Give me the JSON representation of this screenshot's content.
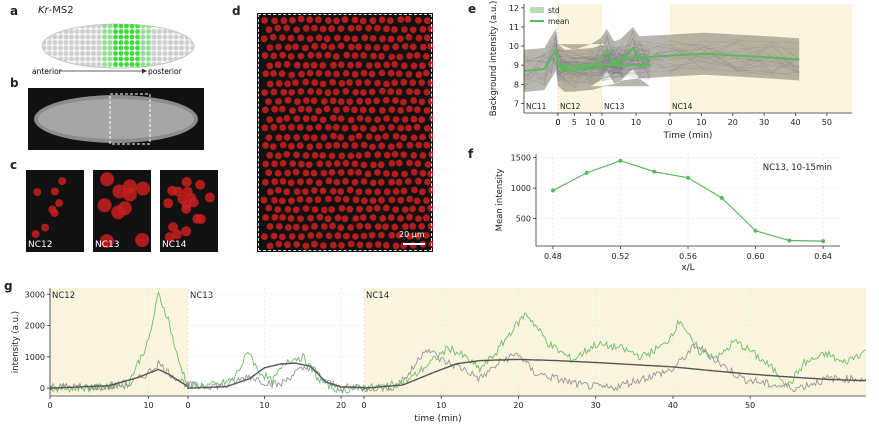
{
  "panels": {
    "a": {
      "letter": "a",
      "title_gene": "Kr",
      "title_rest": "-MS2",
      "axis_left": "anterior",
      "axis_right": "posterior"
    },
    "b": {
      "letter": "b"
    },
    "c": {
      "letter": "c",
      "tiles": [
        "NC12",
        "NC13",
        "NC14"
      ]
    },
    "d": {
      "letter": "d",
      "scalebar": "20 µm"
    },
    "e": {
      "letter": "e"
    },
    "f": {
      "letter": "f"
    },
    "g": {
      "letter": "g"
    }
  },
  "colors": {
    "green": "#5cb85c",
    "gray": "#8c8c8c",
    "dark": "#555555",
    "nc_bg": "#fbf5e0",
    "red": "#c81e1e"
  },
  "chart_data": [
    {
      "id": "e",
      "type": "line",
      "ylabel": "Background intensity (a.u.)",
      "xlabel": "Time (min)",
      "ylim": [
        6.5,
        12.2
      ],
      "yticks": [
        7,
        8,
        9,
        10,
        11,
        12
      ],
      "legend": [
        "std",
        "mean"
      ],
      "legend_position": "top-left",
      "cycles": [
        {
          "name": "NC11",
          "start": -5,
          "end": 0,
          "ticks": [
            0
          ],
          "shaded": false
        },
        {
          "name": "NC12",
          "start": 0,
          "end": 13.5,
          "ticks": [
            0,
            5,
            10
          ],
          "shaded": true
        },
        {
          "name": "NC13",
          "start": 0,
          "end": 20,
          "ticks": [
            0,
            10
          ],
          "shaded": false
        },
        {
          "name": "NC14",
          "start": 0,
          "end": 58,
          "ticks": [
            0,
            10,
            20,
            30,
            40,
            50
          ],
          "shaded": true
        }
      ],
      "mean": [
        [
          -5,
          8.7
        ],
        [
          -2,
          8.8
        ],
        [
          -1,
          9.4
        ],
        [
          -0.3,
          9.8
        ],
        [
          0,
          9.0
        ],
        [
          1,
          8.7
        ],
        [
          5,
          8.8
        ],
        [
          9,
          9.2
        ],
        [
          11,
          9.9
        ],
        [
          12,
          9.4
        ],
        [
          13.5,
          9.0
        ],
        [
          0,
          9.0
        ],
        [
          5,
          8.7
        ],
        [
          10,
          9.0
        ],
        [
          13,
          9.3
        ],
        [
          15,
          9.8
        ],
        [
          17,
          9.2
        ],
        [
          20,
          9.0
        ],
        [
          0,
          9.0
        ],
        [
          3,
          9.1
        ],
        [
          6,
          9.3
        ],
        [
          10,
          9.4
        ],
        [
          20,
          9.5
        ],
        [
          30,
          9.6
        ],
        [
          40,
          9.5
        ],
        [
          50,
          9.4
        ],
        [
          58,
          9.3
        ]
      ]
    },
    {
      "id": "f",
      "type": "line",
      "title": "NC13, 10-15min",
      "xlabel": "x/L",
      "ylabel": "Mean intensity",
      "xlim": [
        0.47,
        0.65
      ],
      "ylim": [
        50,
        1560
      ],
      "xticks": [
        0.48,
        0.52,
        0.56,
        0.6,
        0.64
      ],
      "yticks": [
        500,
        1000,
        1500
      ],
      "x": [
        0.48,
        0.5,
        0.52,
        0.54,
        0.56,
        0.58,
        0.6,
        0.62,
        0.64
      ],
      "y": [
        960,
        1250,
        1450,
        1270,
        1170,
        840,
        300,
        140,
        130
      ]
    },
    {
      "id": "g",
      "type": "line",
      "ylabel": "intensity (a.u.)",
      "xlabel": "time (min)",
      "ylim": [
        -250,
        3200
      ],
      "yticks": [
        0,
        1000,
        2000,
        3000
      ],
      "cycles": [
        {
          "name": "NC12",
          "start": 0,
          "end": 14,
          "ticks": [
            0,
            10
          ],
          "shaded": true
        },
        {
          "name": "NC13",
          "start": 0,
          "end": 23,
          "ticks": [
            0,
            10,
            20
          ],
          "shaded": false
        },
        {
          "name": "NC14",
          "start": 0,
          "end": 65,
          "ticks": [
            0,
            10,
            20,
            30,
            40,
            50
          ],
          "shaded": true
        }
      ],
      "series": [
        {
          "name": "",
          "color": "green",
          "points": [
            [
              0,
              0
            ],
            [
              5,
              20
            ],
            [
              8,
              200
            ],
            [
              10,
              1500
            ],
            [
              11,
              3000
            ],
            [
              12,
              2200
            ],
            [
              13,
              900
            ],
            [
              14,
              100
            ],
            [
              0,
              80
            ],
            [
              4,
              100
            ],
            [
              6,
              300
            ],
            [
              8,
              1200
            ],
            [
              9,
              600
            ],
            [
              11,
              200
            ],
            [
              13,
              900
            ],
            [
              15,
              1000
            ],
            [
              17,
              300
            ],
            [
              19,
              0
            ],
            [
              21,
              -50
            ],
            [
              23,
              50
            ],
            [
              0,
              0
            ],
            [
              3,
              50
            ],
            [
              6,
              300
            ],
            [
              9,
              900
            ],
            [
              11,
              1300
            ],
            [
              13,
              1000
            ],
            [
              15,
              600
            ],
            [
              17,
              1100
            ],
            [
              19,
              1800
            ],
            [
              21,
              2400
            ],
            [
              24,
              1400
            ],
            [
              27,
              900
            ],
            [
              30,
              1400
            ],
            [
              33,
              1300
            ],
            [
              36,
              1000
            ],
            [
              39,
              1400
            ],
            [
              41,
              2200
            ],
            [
              43,
              1200
            ],
            [
              46,
              1000
            ],
            [
              48,
              1500
            ],
            [
              50,
              1200
            ],
            [
              53,
              600
            ],
            [
              55,
              100
            ],
            [
              57,
              800
            ],
            [
              60,
              1100
            ],
            [
              62,
              800
            ],
            [
              65,
              1200
            ]
          ]
        },
        {
          "name": "",
          "color": "gray",
          "points": [
            [
              0,
              50
            ],
            [
              5,
              30
            ],
            [
              8,
              100
            ],
            [
              10,
              500
            ],
            [
              11,
              800
            ],
            [
              12,
              500
            ],
            [
              14,
              100
            ],
            [
              0,
              80
            ],
            [
              5,
              80
            ],
            [
              8,
              400
            ],
            [
              10,
              200
            ],
            [
              12,
              100
            ],
            [
              14,
              500
            ],
            [
              16,
              700
            ],
            [
              18,
              200
            ],
            [
              20,
              0
            ],
            [
              23,
              30
            ],
            [
              0,
              0
            ],
            [
              4,
              50
            ],
            [
              6,
              500
            ],
            [
              8,
              1300
            ],
            [
              10,
              900
            ],
            [
              13,
              600
            ],
            [
              15,
              300
            ],
            [
              18,
              900
            ],
            [
              20,
              1100
            ],
            [
              22,
              500
            ],
            [
              25,
              300
            ],
            [
              28,
              100
            ],
            [
              32,
              0
            ],
            [
              36,
              300
            ],
            [
              40,
              600
            ],
            [
              43,
              1400
            ],
            [
              46,
              800
            ],
            [
              49,
              300
            ],
            [
              53,
              100
            ],
            [
              56,
              0
            ],
            [
              60,
              300
            ],
            [
              65,
              300
            ]
          ]
        },
        {
          "name": "",
          "color": "dark",
          "points": [
            [
              0,
              0
            ],
            [
              6,
              80
            ],
            [
              9,
              350
            ],
            [
              11,
              600
            ],
            [
              12,
              450
            ],
            [
              14,
              50
            ],
            [
              0,
              0
            ],
            [
              5,
              50
            ],
            [
              8,
              300
            ],
            [
              10,
              650
            ],
            [
              12,
              770
            ],
            [
              14,
              800
            ],
            [
              16,
              700
            ],
            [
              18,
              200
            ],
            [
              20,
              40
            ],
            [
              23,
              20
            ],
            [
              0,
              0
            ],
            [
              5,
              100
            ],
            [
              9,
              500
            ],
            [
              12,
              780
            ],
            [
              15,
              880
            ],
            [
              20,
              920
            ],
            [
              25,
              880
            ],
            [
              30,
              820
            ],
            [
              35,
              750
            ],
            [
              40,
              680
            ],
            [
              45,
              560
            ],
            [
              50,
              450
            ],
            [
              55,
              360
            ],
            [
              60,
              280
            ],
            [
              65,
              240
            ]
          ]
        }
      ]
    }
  ]
}
